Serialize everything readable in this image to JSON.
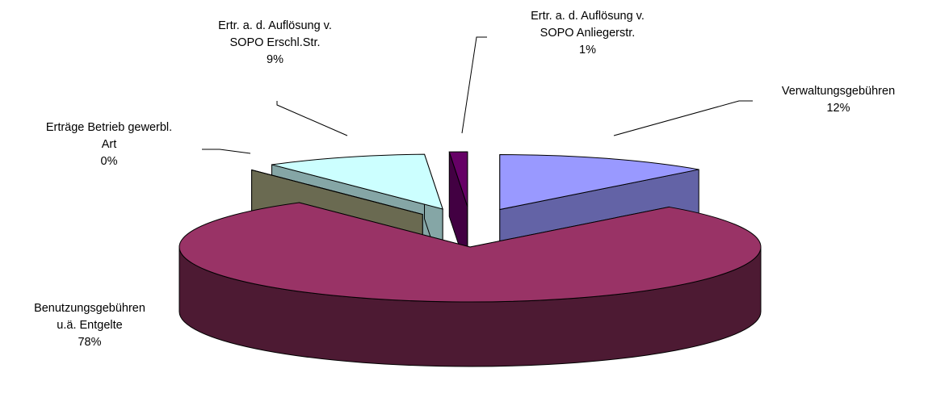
{
  "chart_data": {
    "type": "pie",
    "categories": [
      "Verwaltungsgebühren",
      "Benutzungsgebühren u.ä. Entgelte",
      "Erträge Betrieb gewerbl. Art",
      "Ertr. a. d. Auflösung v. SOPO Erschl.Str.",
      "Ertr. a. d. Auflösung v. SOPO Anliegerstr."
    ],
    "values": [
      12,
      78,
      0,
      9,
      1
    ],
    "value_labels": [
      "12%",
      "78%",
      "0%",
      "9%",
      "1%"
    ],
    "colors": [
      "#9999ff",
      "#993366",
      "#a3a37c",
      "#ccffff",
      "#660066"
    ],
    "exploded": [
      true,
      false,
      true,
      true,
      true
    ],
    "three_d": true
  }
}
